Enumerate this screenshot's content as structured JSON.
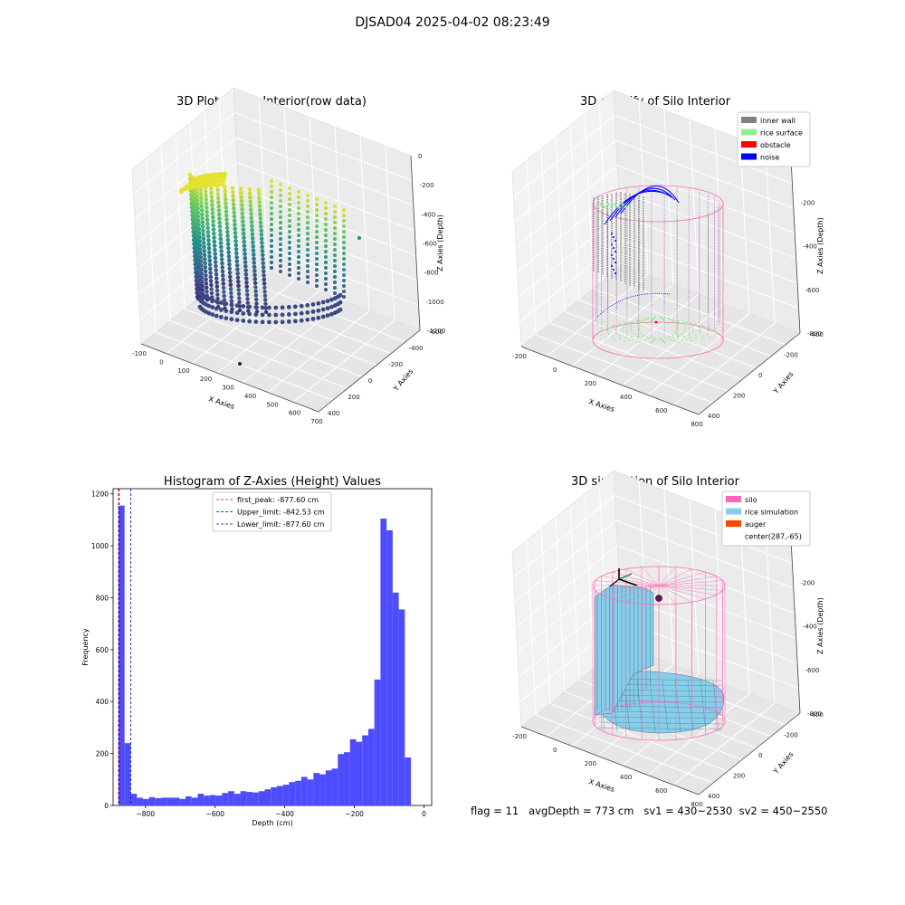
{
  "figure": {
    "title": "DJSAD04 2025-04-02 08:23:49",
    "footer": "flag = 11   avgDepth = 773 cm   sv1 = 430~2530  sv2 = 450~2550"
  },
  "colors": {
    "inner_wall": "#808080",
    "rice_surface": "#90ee90",
    "obstacle": "#ff0000",
    "noise": "#0000ff",
    "silo": "#ff69b4",
    "rice_simulation": "#87ceeb",
    "auger": "#ff4500",
    "hist_bar": "#4d4dff"
  },
  "chart_data": [
    {
      "type": "scatter",
      "title": "3D Plot of Silo Interior(row data)",
      "xlabel": "X Axies",
      "ylabel": "Y Axies",
      "zlabel": "Z Axies (Depth)",
      "xticks": [
        "-100",
        "0",
        "100",
        "200",
        "300",
        "400",
        "500",
        "600",
        "700"
      ],
      "yticks": [
        "400",
        "200",
        "0",
        "-200",
        "-400",
        "-600"
      ],
      "zticks": [
        "0",
        "-200",
        "-400",
        "-600",
        "-800",
        "-1000",
        "-1200"
      ],
      "colormap": "viridis"
    },
    {
      "type": "scatter",
      "title": "3D classify of Silo Interior",
      "xlabel": "X Axies",
      "ylabel": "Y Axies",
      "zlabel": "Z Axies (Depth)",
      "xticks": [
        "-200",
        "0",
        "200",
        "400",
        "600",
        "800"
      ],
      "yticks": [
        "400",
        "200",
        "0",
        "-200",
        "-400"
      ],
      "zticks": [
        "0",
        "-200",
        "-400",
        "-600",
        "-800"
      ],
      "legend": [
        {
          "name": "inner wall",
          "color": "#808080"
        },
        {
          "name": "rice surface",
          "color": "#90ee90"
        },
        {
          "name": "obstacle",
          "color": "#ff0000"
        },
        {
          "name": "noise",
          "color": "#0000ff"
        }
      ],
      "legend_position": "top-right"
    },
    {
      "type": "bar",
      "title": "Histogram of Z-Axies (Height) Values",
      "xlabel": "Depth (cm)",
      "ylabel": "Frequency",
      "xlim": [
        -878,
        0
      ],
      "ylim": [
        0,
        1220
      ],
      "xticks": [
        -800,
        -600,
        -400,
        -200,
        0
      ],
      "yticks": [
        0,
        200,
        400,
        600,
        800,
        1000,
        1200
      ],
      "bin_width": 17.5,
      "bin_start": -877.6,
      "values": [
        1155,
        240,
        45,
        30,
        25,
        32,
        28,
        30,
        30,
        30,
        25,
        35,
        30,
        45,
        38,
        40,
        38,
        48,
        55,
        45,
        55,
        52,
        50,
        55,
        62,
        70,
        75,
        80,
        90,
        95,
        110,
        100,
        125,
        120,
        135,
        142,
        198,
        205,
        255,
        245,
        270,
        295,
        485,
        1105,
        1060,
        820,
        755,
        185
      ],
      "vlines": [
        {
          "label": "first_peak: -877.60 cm",
          "x": -877.6,
          "color": "#ff0000"
        },
        {
          "label": "Upper_limit: -842.53 cm",
          "x": -842.53,
          "color": "#0000cc"
        },
        {
          "label": "Lower_limit: -877.60 cm",
          "x": -877.6,
          "color": "#0000cc"
        }
      ],
      "legend_position": "top-center"
    },
    {
      "type": "area",
      "title": "3D simulation of Silo Interior",
      "xlabel": "X Axies",
      "ylabel": "Y Axies",
      "zlabel": "Z Axies (Depth)",
      "xticks": [
        "-200",
        "0",
        "200",
        "400",
        "600",
        "800"
      ],
      "yticks": [
        "400",
        "200",
        "0",
        "-200",
        "-400"
      ],
      "zticks": [
        "0",
        "-200",
        "-400",
        "-600",
        "-800"
      ],
      "legend": [
        {
          "name": "silo",
          "color": "#ff69b4"
        },
        {
          "name": "rice simulation",
          "color": "#87ceeb"
        },
        {
          "name": "auger",
          "color": "#ff4500"
        },
        {
          "name": "center(287,-65)",
          "color": ""
        }
      ],
      "legend_position": "top-right"
    }
  ]
}
